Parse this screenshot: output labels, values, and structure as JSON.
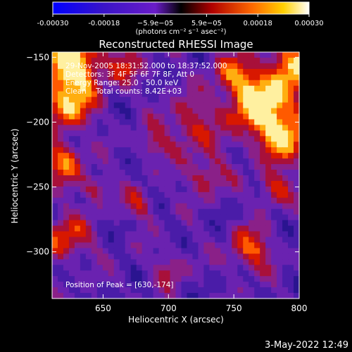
{
  "chart_data": {
    "type": "heatmap",
    "title": "Reconstructed RHESSI Image",
    "xlabel": "Heliocentric X (arcsec)",
    "ylabel": "Heliocentric Y (arcsec)",
    "xlim": [
      611,
      800
    ],
    "ylim": [
      -336,
      -146
    ],
    "x_ticks": [
      650,
      700,
      750,
      800
    ],
    "y_ticks": [
      -150,
      -200,
      -250,
      -300
    ],
    "colorbar": {
      "ticks": [
        "-0.00030",
        "-0.00018",
        "−5.9e−05",
        "5.9e−05",
        "0.00018",
        "0.00030"
      ],
      "unit": "(photons cm⁻² s⁻¹ asec⁻²)",
      "range": [
        -0.0003,
        0.0003
      ]
    },
    "annotations": {
      "time": "29-Nov-2005 18:31:52.000 to 18:37:52.000",
      "detectors": "Detectors: 3F 4F 5F 6F 7F 8F, Att 0",
      "energy": "Energy Range: 25.0 - 50.0 keV",
      "clean": "Clean    Total counts: 8.42E+03",
      "peak": "Position of Peak = [630,-174]"
    },
    "peak": [
      630,
      -174
    ],
    "grid": false
  },
  "footer": {
    "timestamp": "3-May-2022 12:49"
  },
  "colors": {
    "background": "#000000",
    "map_low": "#3a0a8c",
    "map_mid": "#7a1c9a",
    "map_high": "#ff2a00",
    "map_peak": "#fff0a0"
  }
}
